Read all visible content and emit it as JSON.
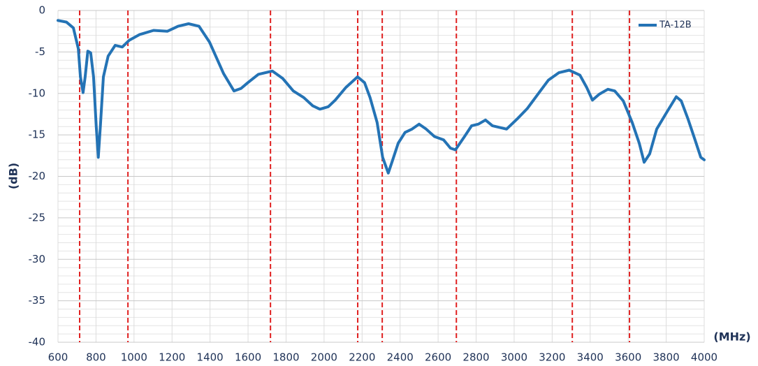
{
  "chart_data": {
    "type": "line",
    "x_label": "(MHz)",
    "y_label": "(dB)",
    "xlim": [
      600,
      4000
    ],
    "xticks": [
      600,
      800,
      1000,
      1200,
      1400,
      1600,
      1800,
      2000,
      2200,
      2400,
      2600,
      2800,
      3000,
      3200,
      3400,
      3600,
      3800,
      4000
    ],
    "ylim": [
      -40,
      0
    ],
    "yticks": [
      -40,
      -35,
      -30,
      -25,
      -20,
      -15,
      -10,
      -5,
      0
    ],
    "minor_yticks": [
      -39,
      -38,
      -37,
      -36,
      -34,
      -33,
      -32,
      -31,
      -29,
      -28,
      -27,
      -26,
      -24,
      -23,
      -22,
      -21,
      -19,
      -18,
      -17,
      -16,
      -14,
      -13,
      -12,
      -11,
      -9,
      -8,
      -7,
      -6,
      -4,
      -3,
      -2,
      -1
    ],
    "grid": true,
    "legend": "upper right",
    "vlines": {
      "values": [
        714,
        968,
        1718,
        2177,
        2306,
        2696,
        3306,
        3607
      ],
      "color": "#e02020"
    },
    "x": [
      600,
      644,
      681,
      707,
      718,
      732,
      743,
      757,
      772,
      787,
      801,
      812,
      823,
      839,
      864,
      901,
      938,
      974,
      1030,
      1103,
      1176,
      1232,
      1287,
      1342,
      1397,
      1471,
      1526,
      1563,
      1599,
      1654,
      1728,
      1783,
      1838,
      1893,
      1941,
      1978,
      2022,
      2059,
      2114,
      2176,
      2213,
      2242,
      2279,
      2308,
      2338,
      2360,
      2390,
      2426,
      2463,
      2500,
      2537,
      2581,
      2629,
      2665,
      2691,
      2739,
      2776,
      2812,
      2849,
      2886,
      2923,
      2960,
      3015,
      3070,
      3125,
      3180,
      3235,
      3290,
      3346,
      3382,
      3412,
      3448,
      3493,
      3529,
      3574,
      3621,
      3658,
      3684,
      3713,
      3750,
      3805,
      3853,
      3879,
      3915,
      3952,
      3982,
      4000
    ],
    "series": [
      {
        "name": "TA-12B",
        "color": "#2473b5",
        "values": [
          -1.2,
          -1.4,
          -2.1,
          -4.6,
          -8,
          -9.9,
          -8,
          -4.9,
          -5.1,
          -8,
          -13.9,
          -17.7,
          -13.9,
          -8,
          -5.5,
          -4.2,
          -4.4,
          -3.6,
          -2.9,
          -2.4,
          -2.5,
          -1.9,
          -1.6,
          -1.9,
          -3.8,
          -7.6,
          -9.7,
          -9.4,
          -8.7,
          -7.7,
          -7.3,
          -8.2,
          -9.7,
          -10.5,
          -11.5,
          -11.9,
          -11.6,
          -10.8,
          -9.3,
          -8,
          -8.7,
          -10.5,
          -13.5,
          -17.7,
          -19.6,
          -18.1,
          -16,
          -14.7,
          -14.3,
          -13.7,
          -14.3,
          -15.2,
          -15.6,
          -16.6,
          -16.8,
          -15.2,
          -13.9,
          -13.7,
          -13.2,
          -13.9,
          -14.1,
          -14.3,
          -13.1,
          -11.8,
          -10.1,
          -8.4,
          -7.5,
          -7.2,
          -7.8,
          -9.3,
          -10.8,
          -10.1,
          -9.5,
          -9.7,
          -10.9,
          -13.5,
          -16,
          -18.3,
          -17.3,
          -14.3,
          -12.2,
          -10.4,
          -10.9,
          -13.1,
          -15.6,
          -17.7,
          -18
        ]
      }
    ]
  }
}
